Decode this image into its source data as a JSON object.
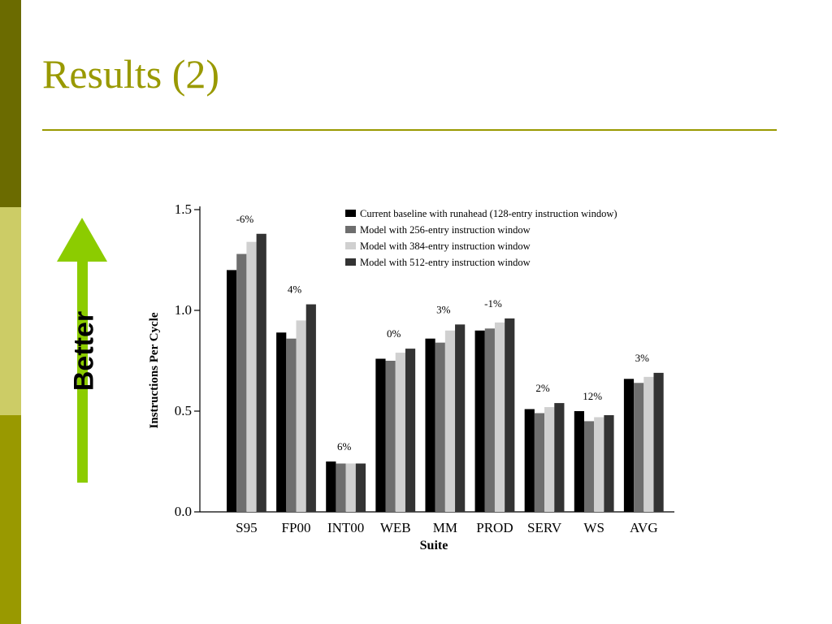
{
  "slide": {
    "title": "Results (2)",
    "better_label": "Better",
    "arrow_color": "#8ccc00",
    "accent_color": "#999900"
  },
  "chart_data": {
    "type": "bar",
    "title": "",
    "xlabel": "Suite",
    "ylabel": "Instructions Per Cycle",
    "ylim": [
      0,
      1.5
    ],
    "yticks": [
      "0.0",
      "0.5",
      "1.0",
      "1.5"
    ],
    "legend_position": "top-right",
    "grid": false,
    "categories": [
      "S95",
      "FP00",
      "INT00",
      "WEB",
      "MM",
      "PROD",
      "SERV",
      "WS",
      "AVG"
    ],
    "annotations": [
      "-6%",
      "4%",
      "6%",
      "0%",
      "3%",
      "-1%",
      "2%",
      "12%",
      "3%"
    ],
    "series": [
      {
        "name": "Current baseline with runahead (128-entry instruction window)",
        "color": "#000000",
        "values": [
          1.2,
          0.89,
          0.25,
          0.76,
          0.86,
          0.9,
          0.51,
          0.5,
          0.66
        ]
      },
      {
        "name": "Model with 256-entry instruction window",
        "color": "#6e6e6e",
        "values": [
          1.28,
          0.86,
          0.24,
          0.75,
          0.84,
          0.91,
          0.49,
          0.45,
          0.64
        ]
      },
      {
        "name": "Model with 384-entry instruction window",
        "color": "#d0d0d0",
        "values": [
          1.34,
          0.95,
          0.24,
          0.79,
          0.9,
          0.94,
          0.52,
          0.47,
          0.67
        ]
      },
      {
        "name": "Model with 512-entry instruction window",
        "color": "#333333",
        "values": [
          1.38,
          1.03,
          0.24,
          0.81,
          0.93,
          0.96,
          0.54,
          0.48,
          0.69
        ]
      }
    ]
  }
}
